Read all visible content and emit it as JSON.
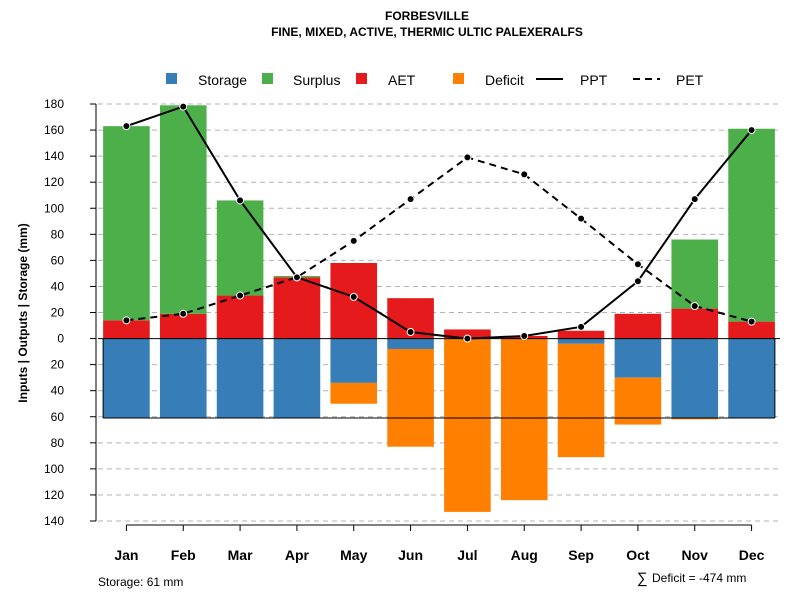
{
  "chart_data": {
    "type": "bar",
    "title": "FORBESVILLE",
    "subtitle": "FINE, MIXED, ACTIVE, THERMIC ULTIC PALEXERALFS",
    "ylabel": "Inputs | Outputs | Storage    (mm)",
    "ylim": [
      -140,
      180
    ],
    "yticks": [
      180,
      160,
      140,
      120,
      100,
      80,
      60,
      40,
      20,
      0,
      -20,
      -40,
      -60,
      -80,
      -100,
      -120,
      -140
    ],
    "ytick_labels": [
      "180",
      "160",
      "140",
      "120",
      "100",
      "80",
      "60",
      "40",
      "20",
      "0",
      "20",
      "40",
      "60",
      "80",
      "100",
      "120",
      "140"
    ],
    "categories": [
      "Jan",
      "Feb",
      "Mar",
      "Apr",
      "May",
      "Jun",
      "Jul",
      "Aug",
      "Sep",
      "Oct",
      "Nov",
      "Dec"
    ],
    "legend": [
      {
        "name": "Storage",
        "kind": "box",
        "color": "#377eb8"
      },
      {
        "name": "Surplus",
        "kind": "box",
        "color": "#4daf4a"
      },
      {
        "name": "AET",
        "kind": "box",
        "color": "#e41a1c"
      },
      {
        "name": "Deficit",
        "kind": "box",
        "color": "#ff7f00"
      },
      {
        "name": "PPT",
        "kind": "solid",
        "color": "#000000"
      },
      {
        "name": "PET",
        "kind": "dashed",
        "color": "#000000"
      }
    ],
    "colors": {
      "storage": "#377eb8",
      "surplus": "#4daf4a",
      "aet": "#e41a1c",
      "deficit": "#ff7f00",
      "line": "#000000",
      "grid": "#b3b3b3"
    },
    "series": [
      {
        "name": "AET",
        "values": [
          14,
          19,
          33,
          47,
          58,
          31,
          7,
          2,
          6,
          19,
          23,
          13
        ]
      },
      {
        "name": "Surplus",
        "values": [
          149,
          160,
          73,
          1,
          0,
          0,
          0,
          0,
          0,
          0,
          53,
          148
        ]
      },
      {
        "name": "Storage",
        "values": [
          61,
          61,
          61,
          61,
          34,
          8,
          0,
          0,
          4,
          30,
          61,
          61
        ]
      },
      {
        "name": "Deficit",
        "values": [
          0,
          0,
          0,
          0,
          16,
          75,
          133,
          124,
          87,
          36,
          1,
          0
        ]
      },
      {
        "name": "PPT",
        "values": [
          163,
          178,
          106,
          47,
          32,
          5,
          0,
          2,
          9,
          44,
          107,
          160
        ]
      },
      {
        "name": "PET",
        "values": [
          14,
          19,
          33,
          47,
          75,
          107,
          139,
          126,
          92,
          57,
          25,
          13
        ]
      }
    ],
    "storage_capacity": 61
  },
  "footer": {
    "storage_label": "Storage: 61 mm",
    "deficit_symbol": "∑",
    "deficit_label": "Deficit = -474 mm"
  }
}
